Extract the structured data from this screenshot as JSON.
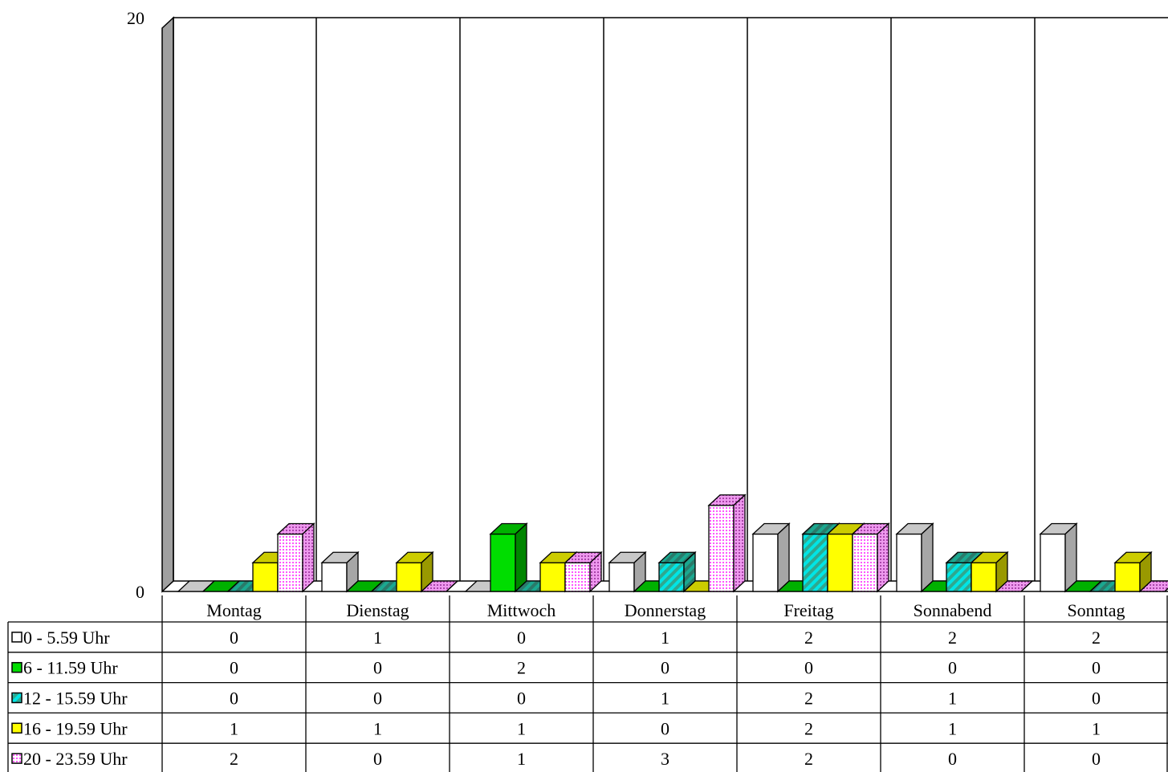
{
  "chart_data": {
    "type": "bar",
    "style": "3d-clustered-column-with-data-table",
    "title": "",
    "xlabel": "",
    "ylabel": "",
    "ylim": [
      0,
      20
    ],
    "yticks": [
      0,
      20
    ],
    "grid": "vertical-category-dividers",
    "legend": "data-table-left",
    "categories": [
      "Montag",
      "Dienstag",
      "Mittwoch",
      "Donnerstag",
      "Freitag",
      "Sonnabend",
      "Sonntag"
    ],
    "series": [
      {
        "name": "0 - 5.59 Uhr",
        "color": "#ffffff",
        "pattern": "solid",
        "values": [
          0,
          1,
          0,
          1,
          2,
          2,
          2
        ]
      },
      {
        "name": "6 - 11.59 Uhr",
        "color": "#00dd00",
        "pattern": "solid",
        "values": [
          0,
          0,
          2,
          0,
          0,
          0,
          0
        ]
      },
      {
        "name": "12 - 15.59 Uhr",
        "color": "#00e5e5",
        "pattern": "stripes",
        "values": [
          0,
          0,
          0,
          1,
          2,
          1,
          0
        ]
      },
      {
        "name": "16 - 19.59 Uhr",
        "color": "#ffff00",
        "pattern": "solid",
        "values": [
          1,
          1,
          1,
          0,
          2,
          1,
          1
        ]
      },
      {
        "name": "20 - 23.59 Uhr",
        "color": "#ff66ff",
        "pattern": "dots",
        "values": [
          2,
          0,
          1,
          3,
          2,
          0,
          0
        ]
      }
    ]
  }
}
